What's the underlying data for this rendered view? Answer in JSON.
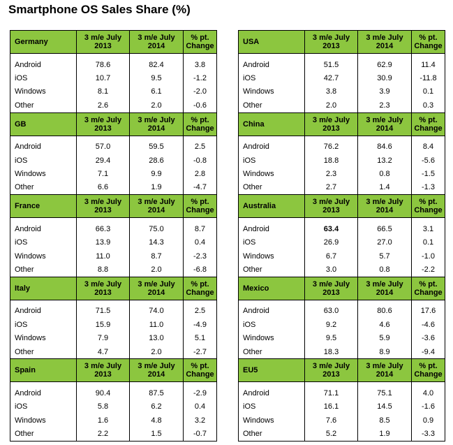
{
  "title": "Smartphone OS Sales Share (%)",
  "columns": [
    "3 m/e July 2013",
    "3 m/e July 2014",
    "% pt. Change"
  ],
  "accent_color": "#8cc63f",
  "chart_data": {
    "type": "table",
    "title": "Smartphone OS Sales Share (%)",
    "columns": [
      "3 m/e July 2013",
      "3 m/e July 2014",
      "% pt. Change"
    ],
    "regions": [
      {
        "name": "Germany",
        "rows": [
          {
            "os": "Android",
            "v2013": "78.6",
            "v2014": "82.4",
            "change": "3.8"
          },
          {
            "os": "iOS",
            "v2013": "10.7",
            "v2014": "9.5",
            "change": "-1.2"
          },
          {
            "os": "Windows",
            "v2013": "8.1",
            "v2014": "6.1",
            "change": "-2.0"
          },
          {
            "os": "Other",
            "v2013": "2.6",
            "v2014": "2.0",
            "change": "-0.6"
          }
        ]
      },
      {
        "name": "GB",
        "rows": [
          {
            "os": "Android",
            "v2013": "57.0",
            "v2014": "59.5",
            "change": "2.5"
          },
          {
            "os": "iOS",
            "v2013": "29.4",
            "v2014": "28.6",
            "change": "-0.8"
          },
          {
            "os": "Windows",
            "v2013": "7.1",
            "v2014": "9.9",
            "change": "2.8"
          },
          {
            "os": "Other",
            "v2013": "6.6",
            "v2014": "1.9",
            "change": "-4.7"
          }
        ]
      },
      {
        "name": "France",
        "rows": [
          {
            "os": "Android",
            "v2013": "66.3",
            "v2014": "75.0",
            "change": "8.7"
          },
          {
            "os": "iOS",
            "v2013": "13.9",
            "v2014": "14.3",
            "change": "0.4"
          },
          {
            "os": "Windows",
            "v2013": "11.0",
            "v2014": "8.7",
            "change": "-2.3"
          },
          {
            "os": "Other",
            "v2013": "8.8",
            "v2014": "2.0",
            "change": "-6.8"
          }
        ]
      },
      {
        "name": "Italy",
        "rows": [
          {
            "os": "Android",
            "v2013": "71.5",
            "v2014": "74.0",
            "change": "2.5"
          },
          {
            "os": "iOS",
            "v2013": "15.9",
            "v2014": "11.0",
            "change": "-4.9"
          },
          {
            "os": "Windows",
            "v2013": "7.9",
            "v2014": "13.0",
            "change": "5.1"
          },
          {
            "os": "Other",
            "v2013": "4.7",
            "v2014": "2.0",
            "change": "-2.7"
          }
        ]
      },
      {
        "name": "Spain",
        "rows": [
          {
            "os": "Android",
            "v2013": "90.4",
            "v2014": "87.5",
            "change": "-2.9"
          },
          {
            "os": "iOS",
            "v2013": "5.8",
            "v2014": "6.2",
            "change": "0.4"
          },
          {
            "os": "Windows",
            "v2013": "1.6",
            "v2014": "4.8",
            "change": "3.2"
          },
          {
            "os": "Other",
            "v2013": "2.2",
            "v2014": "1.5",
            "change": "-0.7"
          }
        ]
      },
      {
        "name": "USA",
        "rows": [
          {
            "os": "Android",
            "v2013": "51.5",
            "v2014": "62.9",
            "change": "11.4"
          },
          {
            "os": "iOS",
            "v2013": "42.7",
            "v2014": "30.9",
            "change": "-11.8"
          },
          {
            "os": "Windows",
            "v2013": "3.8",
            "v2014": "3.9",
            "change": "0.1"
          },
          {
            "os": "Other",
            "v2013": "2.0",
            "v2014": "2.3",
            "change": "0.3"
          }
        ]
      },
      {
        "name": "China",
        "rows": [
          {
            "os": "Android",
            "v2013": "76.2",
            "v2014": "84.6",
            "change": "8.4"
          },
          {
            "os": "iOS",
            "v2013": "18.8",
            "v2014": "13.2",
            "change": "-5.6"
          },
          {
            "os": "Windows",
            "v2013": "2.3",
            "v2014": "0.8",
            "change": "-1.5"
          },
          {
            "os": "Other",
            "v2013": "2.7",
            "v2014": "1.4",
            "change": "-1.3"
          }
        ]
      },
      {
        "name": "Australia",
        "rows": [
          {
            "os": "Android",
            "v2013": "63.4",
            "v2014": "66.5",
            "change": "3.1",
            "bold2013": true
          },
          {
            "os": "iOS",
            "v2013": "26.9",
            "v2014": "27.0",
            "change": "0.1"
          },
          {
            "os": "Windows",
            "v2013": "6.7",
            "v2014": "5.7",
            "change": "-1.0"
          },
          {
            "os": "Other",
            "v2013": "3.0",
            "v2014": "0.8",
            "change": "-2.2"
          }
        ]
      },
      {
        "name": "Mexico",
        "rows": [
          {
            "os": "Android",
            "v2013": "63.0",
            "v2014": "80.6",
            "change": "17.6"
          },
          {
            "os": "iOS",
            "v2013": "9.2",
            "v2014": "4.6",
            "change": "-4.6"
          },
          {
            "os": "Windows",
            "v2013": "9.5",
            "v2014": "5.9",
            "change": "-3.6"
          },
          {
            "os": "Other",
            "v2013": "18.3",
            "v2014": "8.9",
            "change": "-9.4"
          }
        ]
      },
      {
        "name": "EU5",
        "rows": [
          {
            "os": "Android",
            "v2013": "71.1",
            "v2014": "75.1",
            "change": "4.0"
          },
          {
            "os": "iOS",
            "v2013": "16.1",
            "v2014": "14.5",
            "change": "-1.6"
          },
          {
            "os": "Windows",
            "v2013": "7.6",
            "v2014": "8.5",
            "change": "0.9"
          },
          {
            "os": "Other",
            "v2013": "5.2",
            "v2014": "1.9",
            "change": "-3.3"
          }
        ]
      }
    ]
  }
}
